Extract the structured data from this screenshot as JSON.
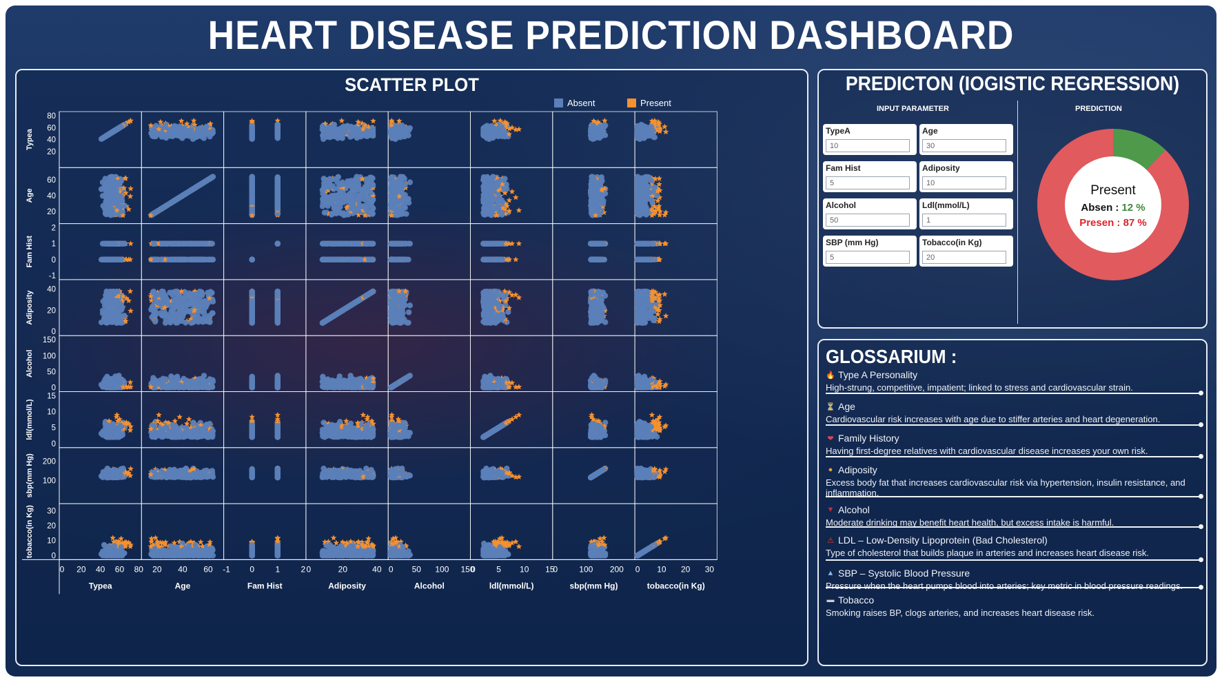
{
  "title": "HEART DISEASE PREDICTION DASHBOARD",
  "scatter": {
    "title": "SCATTER PLOT",
    "legend": [
      {
        "label": "Absent",
        "color": "#5b7fb8"
      },
      {
        "label": "Present",
        "color": "#f5912f"
      }
    ]
  },
  "chart_data": {
    "type": "scatter",
    "title": "SCATTER PLOT",
    "chart_kind": "scatter-plot-matrix",
    "series": [
      {
        "name": "Absent"
      },
      {
        "name": "Present"
      }
    ],
    "variables": [
      {
        "key": "typea",
        "xlabel": "Typea",
        "ylabel": "Typea",
        "range": [
          0,
          80
        ],
        "xticks": [
          0,
          20,
          40,
          60,
          80
        ],
        "yticks": [
          20,
          40,
          60,
          80
        ]
      },
      {
        "key": "age",
        "xlabel": "Age",
        "ylabel": "Age",
        "range": [
          10,
          70
        ],
        "xticks": [
          20,
          40,
          60
        ],
        "yticks": [
          20,
          40,
          60
        ]
      },
      {
        "key": "famhist",
        "xlabel": "Fam Hist",
        "ylabel": "Fam Hist",
        "range": [
          -1,
          2
        ],
        "xticks": [
          -1,
          0,
          1,
          2
        ],
        "yticks": [
          -1,
          0,
          1,
          2
        ]
      },
      {
        "key": "adiposity",
        "xlabel": "Adiposity",
        "ylabel": "Adiposity",
        "range": [
          0,
          45
        ],
        "xticks": [
          0,
          20,
          40
        ],
        "yticks": [
          0,
          20,
          40
        ]
      },
      {
        "key": "alcohol",
        "xlabel": "Alcohol",
        "ylabel": "Alcohol",
        "range": [
          0,
          150
        ],
        "xticks": [
          0,
          50,
          100,
          150
        ],
        "yticks": [
          0,
          50,
          100,
          150
        ]
      },
      {
        "key": "ldl",
        "xlabel": "ldl(mmol/L)",
        "ylabel": "ldl(mmol/L)",
        "range": [
          0,
          15
        ],
        "xticks": [
          0,
          5,
          10,
          15
        ],
        "yticks": [
          0,
          5,
          10,
          15
        ]
      },
      {
        "key": "sbp",
        "xlabel": "sbp(mm Hg)",
        "ylabel": "sbp(mm Hg)",
        "range": [
          0,
          250
        ],
        "xticks": [
          0,
          100,
          200
        ],
        "yticks": [
          100,
          200
        ]
      },
      {
        "key": "tobacco",
        "xlabel": "tobacco(in Kg)",
        "ylabel": "tobacco(in Kg)",
        "range": [
          0,
          32
        ],
        "xticks": [
          0,
          10,
          20,
          30
        ],
        "yticks": [
          0,
          10,
          20,
          30
        ]
      }
    ]
  },
  "prediction": {
    "title": "PREDICTON (IOGISTIC REGRESSION)",
    "input_header": "INPUT PARAMETER",
    "prediction_header": "PREDICTION",
    "params": [
      {
        "label": "TypeA",
        "value": "10"
      },
      {
        "label": "Age",
        "value": "30"
      },
      {
        "label": "Fam Hist",
        "value": "5"
      },
      {
        "label": "Adiposity",
        "value": "10"
      },
      {
        "label": "Alcohol",
        "value": "50"
      },
      {
        "label": "Ldl(mmol/L)",
        "value": "1"
      },
      {
        "label": "SBP (mm Hg)",
        "value": "5"
      },
      {
        "label": "Tobacco(in Kg)",
        "value": "20"
      }
    ],
    "result": {
      "label": "Present",
      "absent_text": "Absen :",
      "absent_pct": "12 %",
      "present_text": "Presen : 87 %",
      "absent_value": 12,
      "present_value": 87,
      "absent_color": "#4f9a4a",
      "present_color": "#e05a5e"
    }
  },
  "glossary": {
    "title": "GLOSSARIUM :",
    "items": [
      {
        "icon": "brain-fire-icon",
        "glyph": "🔥",
        "term": "Type A Personality",
        "desc": "High-strung, competitive, impatient; linked to stress and cardiovascular strain."
      },
      {
        "icon": "hourglass-icon",
        "glyph": "⏳",
        "term": "Age",
        "desc": "Cardiovascular risk increases with age due to stiffer arteries and heart degeneration."
      },
      {
        "icon": "family-heart-icon",
        "glyph": "❤",
        "term": "Family History",
        "desc": "Having first-degree relatives with cardiovascular disease increases your own risk."
      },
      {
        "icon": "burger-icon",
        "glyph": "●",
        "term": "Adiposity",
        "desc": "Excess body fat that increases cardiovascular risk via hypertension, insulin resistance, and inflammation."
      },
      {
        "icon": "wine-icon",
        "glyph": "▼",
        "term": "Alcohol",
        "desc": "Moderate drinking may benefit heart health, but excess intake is harmful."
      },
      {
        "icon": "drop-warning-icon",
        "glyph": "⚠",
        "term": "LDL – Low-Density Lipoprotein (Bad Cholesterol)",
        "desc": "Type of cholesterol that builds plaque in arteries and increases heart disease risk."
      },
      {
        "icon": "chart-icon",
        "glyph": "▲",
        "term": "SBP – Systolic Blood Pressure",
        "desc": "Pressure when the heart pumps blood into arteries; key metric in blood pressure readings."
      },
      {
        "icon": "cigarette-icon",
        "glyph": "▬",
        "term": "Tobacco",
        "desc": "Smoking raises BP, clogs arteries, and increases heart disease risk."
      }
    ]
  }
}
